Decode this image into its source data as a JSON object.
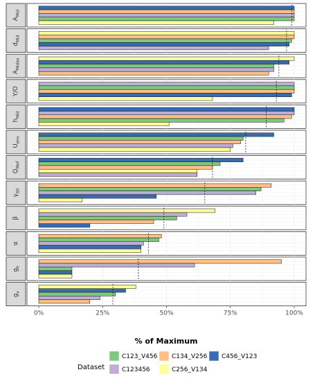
{
  "chart_data": {
    "type": "bar",
    "orientation": "horizontal",
    "facet_layout": "vertical stack",
    "xlabel": "% of Maximum",
    "xlim": [
      0,
      100
    ],
    "x_ticks": [
      "0%",
      "25%",
      "50%",
      "75%",
      "100%"
    ],
    "grid": true,
    "legend": {
      "title": "Dataset",
      "placement": "bottom",
      "entries": [
        {
          "name": "C123_V456",
          "color": "#7fc97f"
        },
        {
          "name": "C123456",
          "color": "#beaed4"
        },
        {
          "name": "C134_V256",
          "color": "#fdc086"
        },
        {
          "name": "C256_V134",
          "color": "#ffff99"
        },
        {
          "name": "C456_V123",
          "color": "#386cb0"
        }
      ]
    },
    "series_order_top_to_bottom": [
      "C456_V123",
      "C134_V256",
      "C123456",
      "C123_V456",
      "C256_V134"
    ],
    "facets": [
      {
        "label": "A_Mid",
        "mean": 99,
        "bars": [
          {
            "series": "C456_V123",
            "value": 100
          },
          {
            "series": "C134_V256",
            "value": 100
          },
          {
            "series": "C123456",
            "value": 100
          },
          {
            "series": "C123_V456",
            "value": 100
          },
          {
            "series": "C256_V134",
            "value": 92
          }
        ]
      },
      {
        "label": "d_Mid",
        "mean": 97,
        "bars": [
          {
            "series": "C256_V134",
            "value": 100
          },
          {
            "series": "C134_V256",
            "value": 100
          },
          {
            "series": "C123_V456",
            "value": 99
          },
          {
            "series": "C456_V123",
            "value": 98
          },
          {
            "series": "C123456",
            "value": 90
          }
        ]
      },
      {
        "label": "A_Midex",
        "mean": 94,
        "bars": [
          {
            "series": "C256_V134",
            "value": 100
          },
          {
            "series": "C456_V123",
            "value": 98
          },
          {
            "series": "C123_V456",
            "value": 92
          },
          {
            "series": "C123456",
            "value": 92
          },
          {
            "series": "C134_V256",
            "value": 90
          }
        ]
      },
      {
        "label": "Y/O",
        "mean": 93,
        "bars": [
          {
            "series": "C123456",
            "value": 100
          },
          {
            "series": "C123_V456",
            "value": 100
          },
          {
            "series": "C134_V256",
            "value": 100
          },
          {
            "series": "C456_V123",
            "value": 99
          },
          {
            "series": "C256_V134",
            "value": 68
          }
        ]
      },
      {
        "label": "h_Mid",
        "mean": 89,
        "bars": [
          {
            "series": "C456_V123",
            "value": 100
          },
          {
            "series": "C123456",
            "value": 100
          },
          {
            "series": "C134_V256",
            "value": 99
          },
          {
            "series": "C123_V456",
            "value": 96
          },
          {
            "series": "C256_V134",
            "value": 51
          }
        ]
      },
      {
        "label": "U_env",
        "mean": 81,
        "bars": [
          {
            "series": "C456_V123",
            "value": 92
          },
          {
            "series": "C123_V456",
            "value": 80
          },
          {
            "series": "C134_V256",
            "value": 79
          },
          {
            "series": "C123456",
            "value": 76
          },
          {
            "series": "C256_V134",
            "value": 75
          }
        ]
      },
      {
        "label": "Q_Mef",
        "mean": 68,
        "bars": [
          {
            "series": "C456_V123",
            "value": 80
          },
          {
            "series": "C123_V456",
            "value": 71
          },
          {
            "series": "C134_V256",
            "value": 68
          },
          {
            "series": "C256_V134",
            "value": 62
          },
          {
            "series": "C123456",
            "value": 62
          }
        ]
      },
      {
        "label": "γ_Stl",
        "mean": 65,
        "bars": [
          {
            "series": "C134_V256",
            "value": 91
          },
          {
            "series": "C123_V456",
            "value": 87
          },
          {
            "series": "C123456",
            "value": 85
          },
          {
            "series": "C456_V123",
            "value": 46
          },
          {
            "series": "C256_V134",
            "value": 17
          }
        ]
      },
      {
        "label": "β",
        "mean": 49,
        "bars": [
          {
            "series": "C256_V134",
            "value": 69
          },
          {
            "series": "C123456",
            "value": 58
          },
          {
            "series": "C123_V456",
            "value": 54
          },
          {
            "series": "C134_V256",
            "value": 45
          },
          {
            "series": "C456_V123",
            "value": 20
          }
        ]
      },
      {
        "label": "α",
        "mean": 43,
        "bars": [
          {
            "series": "C134_V256",
            "value": 48
          },
          {
            "series": "C123_V456",
            "value": 47
          },
          {
            "series": "C123456",
            "value": 41
          },
          {
            "series": "C456_V123",
            "value": 40
          },
          {
            "series": "C256_V134",
            "value": 40
          }
        ]
      },
      {
        "label": "g_h",
        "mean": 39,
        "bars": [
          {
            "series": "C134_V256",
            "value": 95
          },
          {
            "series": "C123456",
            "value": 61
          },
          {
            "series": "C123_V456",
            "value": 13
          },
          {
            "series": "C456_V123",
            "value": 13
          },
          {
            "series": "C256_V134",
            "value": 13
          }
        ]
      },
      {
        "label": "g_v",
        "mean": 29,
        "bars": [
          {
            "series": "C256_V134",
            "value": 38
          },
          {
            "series": "C456_V123",
            "value": 34
          },
          {
            "series": "C123_V456",
            "value": 30
          },
          {
            "series": "C123456",
            "value": 24
          },
          {
            "series": "C134_V256",
            "value": 20
          }
        ]
      }
    ]
  }
}
